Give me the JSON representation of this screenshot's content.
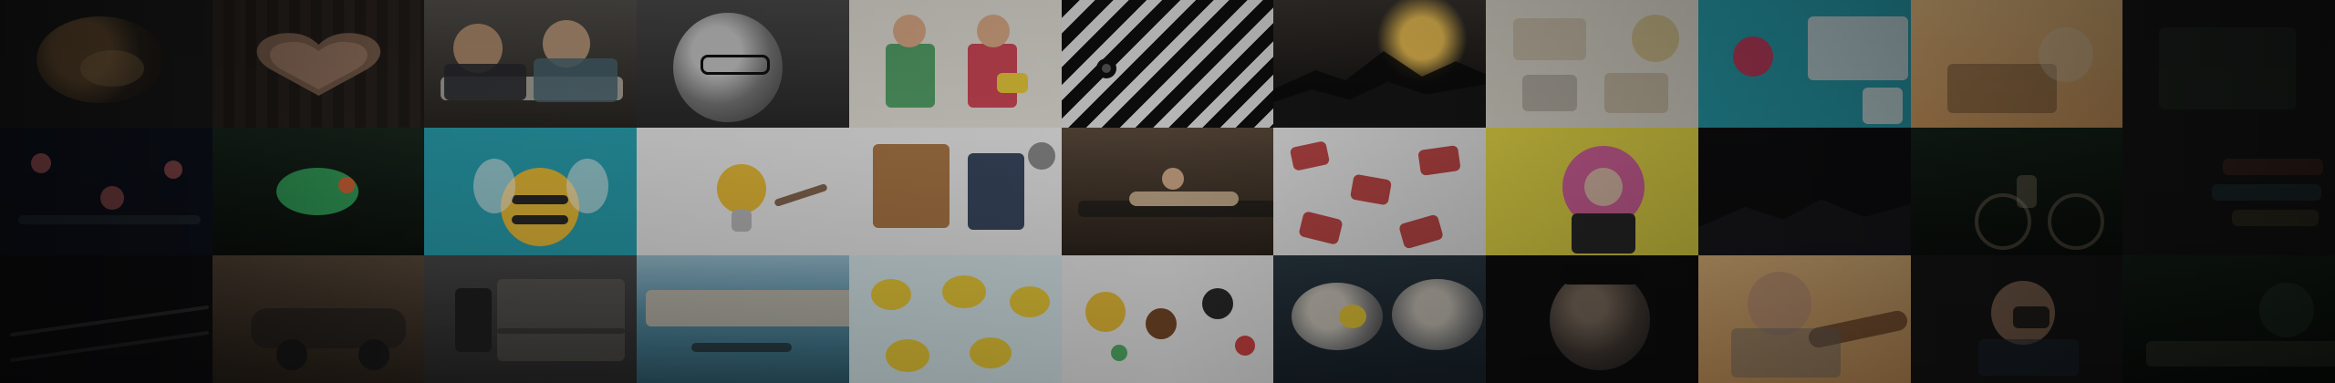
{
  "mosaic": {
    "tiles": [
      {
        "name": "tile-01",
        "icon": "lion-image-icon"
      },
      {
        "name": "tile-02",
        "icon": "wood-heart-image-icon"
      },
      {
        "name": "tile-03",
        "icon": "people-at-desk-image-icon"
      },
      {
        "name": "tile-04",
        "icon": "man-with-glasses-image-icon"
      },
      {
        "name": "tile-05",
        "icon": "illustrated-travelers-image-icon"
      },
      {
        "name": "tile-06",
        "icon": "zebra-image-icon"
      },
      {
        "name": "tile-07",
        "icon": "mountain-sunset-image-icon"
      },
      {
        "name": "tile-08",
        "icon": "travel-flatlay-image-icon"
      },
      {
        "name": "tile-09",
        "icon": "desk-flatlay-image-icon"
      },
      {
        "name": "tile-10",
        "icon": "warm-light-image-icon"
      },
      {
        "name": "tile-11",
        "icon": "dark-image-icon"
      },
      {
        "name": "tile-12",
        "icon": "floral-pattern-image-icon"
      },
      {
        "name": "tile-13",
        "icon": "frog-image-icon"
      },
      {
        "name": "tile-14",
        "icon": "bee-illustration-image-icon"
      },
      {
        "name": "tile-15",
        "icon": "lightbulb-drawing-image-icon"
      },
      {
        "name": "tile-16",
        "icon": "clothing-flatlay-image-icon"
      },
      {
        "name": "tile-17",
        "icon": "kayak-image-icon"
      },
      {
        "name": "tile-18",
        "icon": "hand-pattern-image-icon"
      },
      {
        "name": "tile-19",
        "icon": "pink-hair-portrait-image-icon"
      },
      {
        "name": "tile-20",
        "icon": "dark-landscape-image-icon"
      },
      {
        "name": "tile-21",
        "icon": "cyclist-image-icon"
      },
      {
        "name": "tile-22",
        "icon": "dark-still-life-image-icon"
      },
      {
        "name": "tile-23",
        "icon": "dark-rail-image-icon"
      },
      {
        "name": "tile-24",
        "icon": "vintage-car-image-icon"
      },
      {
        "name": "tile-25",
        "icon": "train-station-image-icon"
      },
      {
        "name": "tile-26",
        "icon": "venice-canal-image-icon"
      },
      {
        "name": "tile-27",
        "icon": "lemon-pattern-image-icon"
      },
      {
        "name": "tile-28",
        "icon": "food-flatlay-image-icon"
      },
      {
        "name": "tile-29",
        "icon": "oysters-image-icon"
      },
      {
        "name": "tile-30",
        "icon": "bearded-man-image-icon"
      },
      {
        "name": "tile-31",
        "icon": "guitarist-image-icon"
      },
      {
        "name": "tile-32",
        "icon": "photographer-image-icon"
      },
      {
        "name": "tile-33",
        "icon": "outdoor-image-icon"
      }
    ]
  }
}
